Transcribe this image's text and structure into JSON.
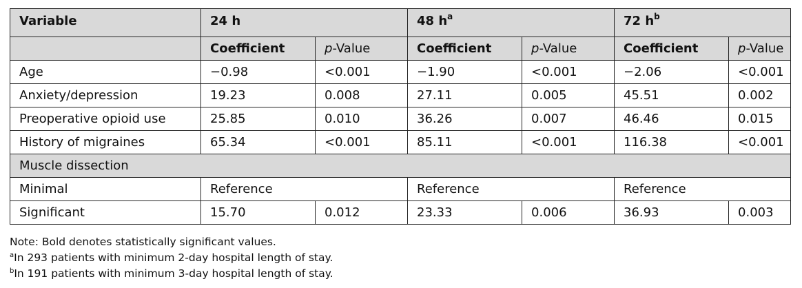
{
  "table": {
    "header": {
      "variable": "Variable",
      "groups": [
        {
          "label": "24 h",
          "sup": ""
        },
        {
          "label": "48 h",
          "sup": "a"
        },
        {
          "label": "72 h",
          "sup": "b"
        }
      ],
      "coef": "Coefficient",
      "p_italic": "p",
      "p_rest": "-Value"
    },
    "rows": [
      {
        "variable": "Age",
        "c24": "−0.98",
        "p24": "<0.001",
        "c48": "−1.90",
        "p48": "<0.001",
        "c72": "−2.06",
        "p72": "<0.001"
      },
      {
        "variable": "Anxiety/depression",
        "c24": "19.23",
        "p24": "0.008",
        "c48": "27.11",
        "p48": "0.005",
        "c72": "45.51",
        "p72": "0.002"
      },
      {
        "variable": "Preoperative opioid use",
        "c24": "25.85",
        "p24": "0.010",
        "c48": "36.26",
        "p48": "0.007",
        "c72": "46.46",
        "p72": "0.015"
      },
      {
        "variable": "History of migraines",
        "c24": "65.34",
        "p24": "<0.001",
        "c48": "85.11",
        "p48": "<0.001",
        "c72": "116.38",
        "p72": "<0.001"
      }
    ],
    "section": "Muscle dissection",
    "minimal": {
      "variable": "Minimal",
      "r24": "Reference",
      "r48": "Reference",
      "r72": "Reference"
    },
    "significant": {
      "variable": "Significant",
      "c24": "15.70",
      "p24": "0.012",
      "c48": "23.33",
      "p48": "0.006",
      "c72": "36.93",
      "p72": "0.003"
    }
  },
  "notes": {
    "note": "Note: Bold denotes statistically significant values.",
    "a_sup": "a",
    "a_text": "In 293 patients with minimum 2-day hospital length of stay.",
    "b_sup": "b",
    "b_text": "In 191 patients with minimum 3-day hospital length of stay."
  }
}
